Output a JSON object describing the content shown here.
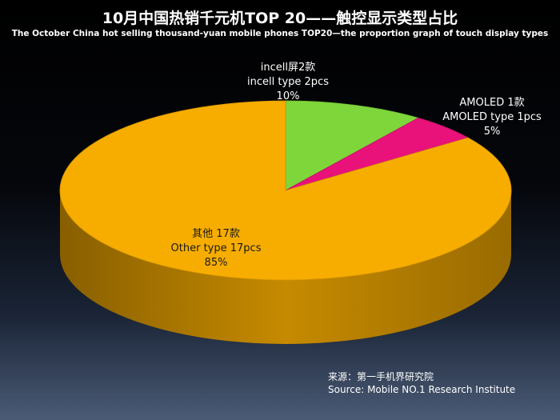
{
  "chart_data": {
    "type": "pie",
    "title": "10月中国热销千元机TOP 20——触控显示类型占比",
    "subtitle": "The October China hot selling thousand-yuan mobile phones TOP20—the proportion graph of touch display types",
    "slices": [
      {
        "label_cn": "incell屏2款",
        "label_en": "incell type  2pcs",
        "value": 2,
        "percent": "10%",
        "color": "#7fd63a"
      },
      {
        "label_cn": "AMOLED  1款",
        "label_en": "AMOLED  type  1pcs",
        "value": 1,
        "percent": "5%",
        "color": "#e8127a"
      },
      {
        "label_cn": "其他 17款",
        "label_en": "Other type 17pcs",
        "value": 17,
        "percent": "85%",
        "color": "#f7ad00"
      }
    ]
  },
  "source": {
    "cn": "来源：第一手机界研究院",
    "en": "Source: Mobile NO.1 Research Institute"
  }
}
